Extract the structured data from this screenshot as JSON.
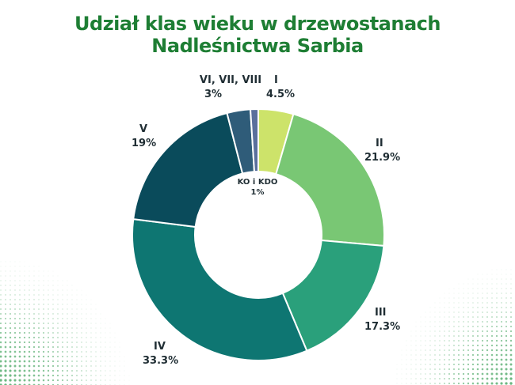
{
  "title": {
    "line1": "Udział klas wieku w drzewostanach",
    "line2": "Nadleśnictwa Sarbia"
  },
  "chart_data": {
    "type": "pie",
    "style": "donut",
    "title": "Udział klas wieku w drzewostanach Nadleśnictwa Sarbia",
    "slices": [
      {
        "label": "I",
        "value": 4.5,
        "display": "4.5%",
        "color": "#cde36a"
      },
      {
        "label": "II",
        "value": 21.9,
        "display": "21.9%",
        "color": "#79c774"
      },
      {
        "label": "III",
        "value": 17.3,
        "display": "17.3%",
        "color": "#2aa07b"
      },
      {
        "label": "IV",
        "value": 33.3,
        "display": "33.3%",
        "color": "#0e7672"
      },
      {
        "label": "V",
        "value": 19,
        "display": "19%",
        "color": "#0a4b5b"
      },
      {
        "label": "VI, VII, VIII",
        "value": 3,
        "display": "3%",
        "color": "#2f5c79"
      },
      {
        "label": "KO i KDO",
        "value": 1,
        "display": "1%",
        "color": "#5a6f9c"
      }
    ],
    "legend": "none"
  },
  "decor": {
    "dot_color": "#3ea15a"
  }
}
